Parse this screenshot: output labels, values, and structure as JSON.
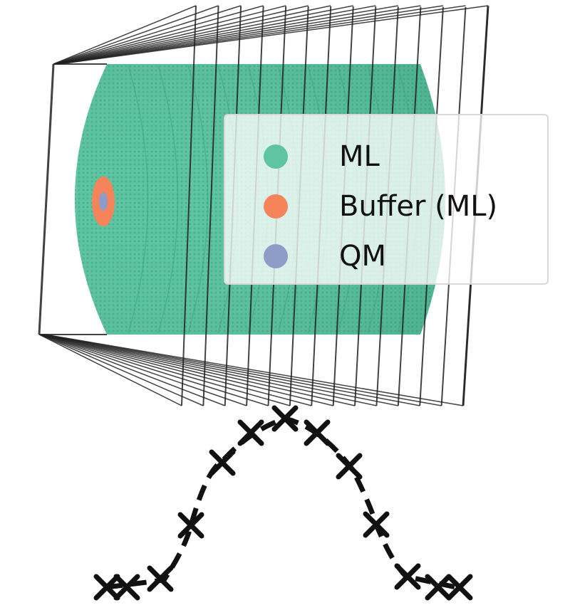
{
  "colors": {
    "ml": "#5fc4a1",
    "ml_dark": "#3aa083",
    "buffer": "#f5845a",
    "qm": "#8e9cc8",
    "box_line": "#222222",
    "path": "#111111"
  },
  "legend": {
    "placement": "center-right",
    "items": [
      {
        "label": "ML",
        "color": "#5fc4a1"
      },
      {
        "label": "Buffer (ML)",
        "color": "#f5845a"
      },
      {
        "label": "QM",
        "color": "#8e9cc8"
      }
    ]
  },
  "icons": {
    "path_marker": "cross-marker-icon",
    "box": "wireframe-box"
  }
}
